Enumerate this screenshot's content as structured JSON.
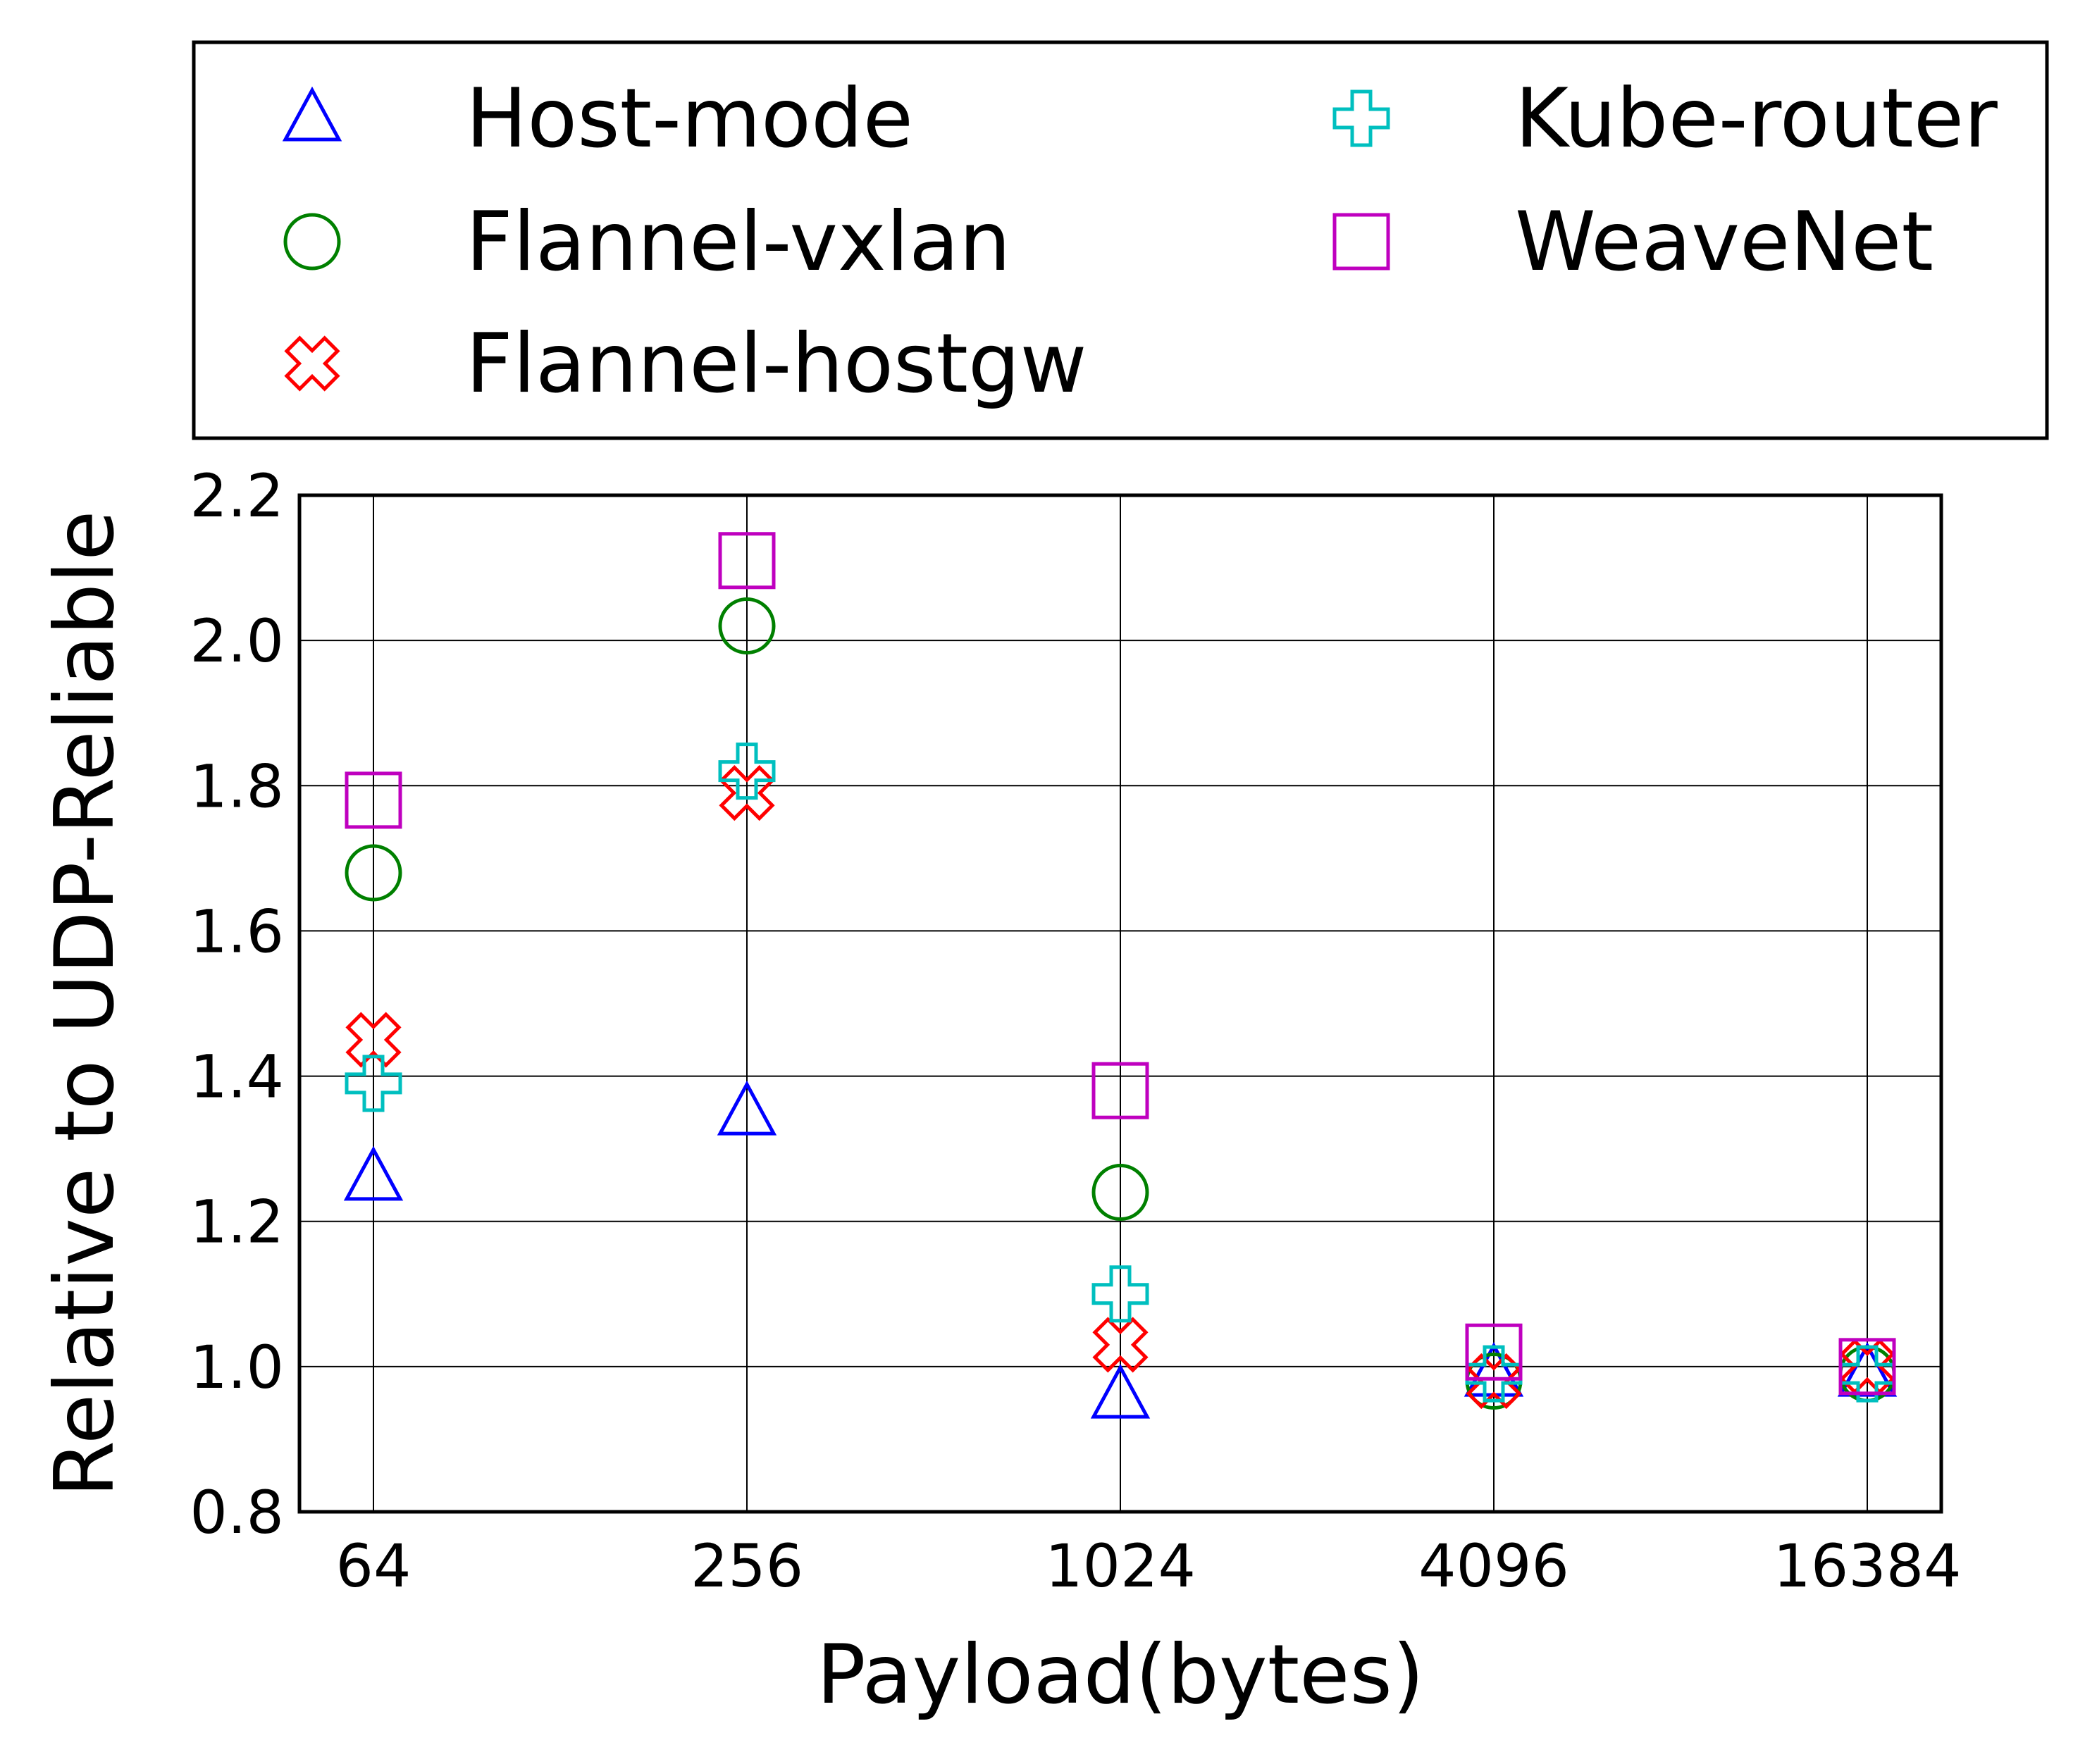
{
  "chart_data": {
    "type": "scatter",
    "xlabel": "Payload(bytes)",
    "ylabel": "Relative to UDP-Reliable",
    "categories": [
      "64",
      "256",
      "1024",
      "4096",
      "16384"
    ],
    "ylim": [
      0.8,
      2.2
    ],
    "yticks": [
      "0.8",
      "1.0",
      "1.2",
      "1.4",
      "1.6",
      "1.8",
      "2.0",
      "2.2"
    ],
    "grid": true,
    "legend_position": "top, above plot, 2 columns",
    "series": [
      {
        "name": "Host-mode",
        "marker": "triangle",
        "color": "#0000ff",
        "values": [
          1.26,
          1.35,
          0.96,
          0.99,
          0.99
        ]
      },
      {
        "name": "Flannel-vxlan",
        "marker": "circle",
        "color": "#008000",
        "values": [
          1.68,
          2.02,
          1.24,
          0.98,
          0.99
        ]
      },
      {
        "name": "Flannel-hostgw",
        "marker": "x",
        "color": "#ff0000",
        "values": [
          1.45,
          1.79,
          1.03,
          0.98,
          1.0
        ]
      },
      {
        "name": "Kube-router",
        "marker": "plus",
        "color": "#00bfbf",
        "values": [
          1.39,
          1.82,
          1.1,
          0.99,
          0.99
        ]
      },
      {
        "name": "WeaveNet",
        "marker": "square",
        "color": "#bf00bf",
        "values": [
          1.78,
          2.11,
          1.38,
          1.02,
          1.0
        ]
      }
    ]
  }
}
